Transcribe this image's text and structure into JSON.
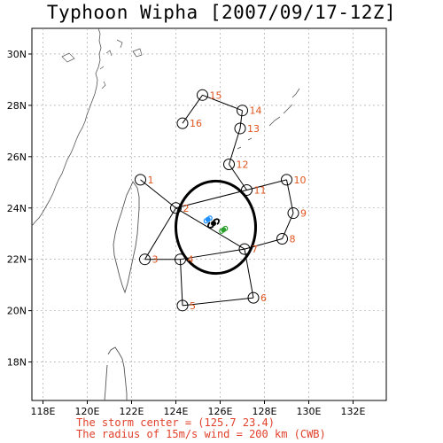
{
  "title": "Typhoon Wipha [2007/09/17-12Z]",
  "footer": {
    "line1": "The storm center = (125.7 23.4)",
    "line2": "The radius of 15m/s wind = 200 km (CWB)"
  },
  "map": {
    "lon_range": [
      117.5,
      133.5
    ],
    "lat_range": [
      16.5,
      31
    ],
    "lon_ticks": [
      {
        "value": 118,
        "label": "118E"
      },
      {
        "value": 120,
        "label": "120E"
      },
      {
        "value": 122,
        "label": "122E"
      },
      {
        "value": 124,
        "label": "124E"
      },
      {
        "value": 126,
        "label": "126E"
      },
      {
        "value": 128,
        "label": "128E"
      },
      {
        "value": 130,
        "label": "130E"
      },
      {
        "value": 132,
        "label": "132E"
      }
    ],
    "lat_ticks": [
      {
        "value": 18,
        "label": "18N"
      },
      {
        "value": 20,
        "label": "20N"
      },
      {
        "value": 22,
        "label": "22N"
      },
      {
        "value": 24,
        "label": "24N"
      },
      {
        "value": 26,
        "label": "26N"
      },
      {
        "value": 28,
        "label": "28N"
      },
      {
        "value": 30,
        "label": "30N"
      }
    ],
    "colors": {
      "label": "#e0541e",
      "footer": "#e0402a",
      "track": "#000000",
      "grid": "#999999"
    },
    "storm_center": {
      "lon": 125.7,
      "lat": 23.4
    },
    "wind_radius_circle": {
      "center_lon": 125.8,
      "center_lat": 23.25,
      "radius_deg": 1.8
    },
    "track_points": [
      {
        "id": "1",
        "lon": 122.4,
        "lat": 25.1
      },
      {
        "id": "2",
        "lon": 124.0,
        "lat": 24.0
      },
      {
        "id": "3",
        "lon": 122.6,
        "lat": 22.0
      },
      {
        "id": "4",
        "lon": 124.2,
        "lat": 22.0
      },
      {
        "id": "5",
        "lon": 124.3,
        "lat": 20.2
      },
      {
        "id": "6",
        "lon": 127.5,
        "lat": 20.5
      },
      {
        "id": "7",
        "lon": 127.1,
        "lat": 22.4
      },
      {
        "id": "8",
        "lon": 128.8,
        "lat": 22.8
      },
      {
        "id": "9",
        "lon": 129.3,
        "lat": 23.8
      },
      {
        "id": "10",
        "lon": 129.0,
        "lat": 25.1
      },
      {
        "id": "11",
        "lon": 127.2,
        "lat": 24.7
      },
      {
        "id": "12",
        "lon": 126.4,
        "lat": 25.7
      },
      {
        "id": "13",
        "lon": 126.9,
        "lat": 27.1
      },
      {
        "id": "14",
        "lon": 127.0,
        "lat": 27.8
      },
      {
        "id": "15",
        "lon": 125.2,
        "lat": 28.4
      },
      {
        "id": "16",
        "lon": 124.3,
        "lat": 27.3
      }
    ],
    "track_segments": [
      [
        "1",
        "2"
      ],
      [
        "2",
        "3"
      ],
      [
        "3",
        "4"
      ],
      [
        "4",
        "5"
      ],
      [
        "5",
        "6"
      ],
      [
        "6",
        "7"
      ],
      [
        "7",
        "8"
      ],
      [
        "8",
        "9"
      ],
      [
        "9",
        "10"
      ],
      [
        "10",
        "11"
      ],
      [
        "11",
        "12"
      ],
      [
        "12",
        "13"
      ],
      [
        "13",
        "14"
      ],
      [
        "14",
        "15"
      ],
      [
        "15",
        "16"
      ],
      [
        "2",
        "11"
      ],
      [
        "2",
        "7"
      ],
      [
        "4",
        "7"
      ]
    ],
    "markers": [
      {
        "name": "current-typhoon-icon",
        "lon": 125.7,
        "lat": 23.4,
        "color": "#000000"
      },
      {
        "name": "blue-storm-marker",
        "lon": 125.45,
        "lat": 23.55,
        "color": "#1e90ff"
      },
      {
        "name": "green-storm-marker",
        "lon": 126.15,
        "lat": 23.15,
        "color": "#2ca02c"
      }
    ]
  }
}
